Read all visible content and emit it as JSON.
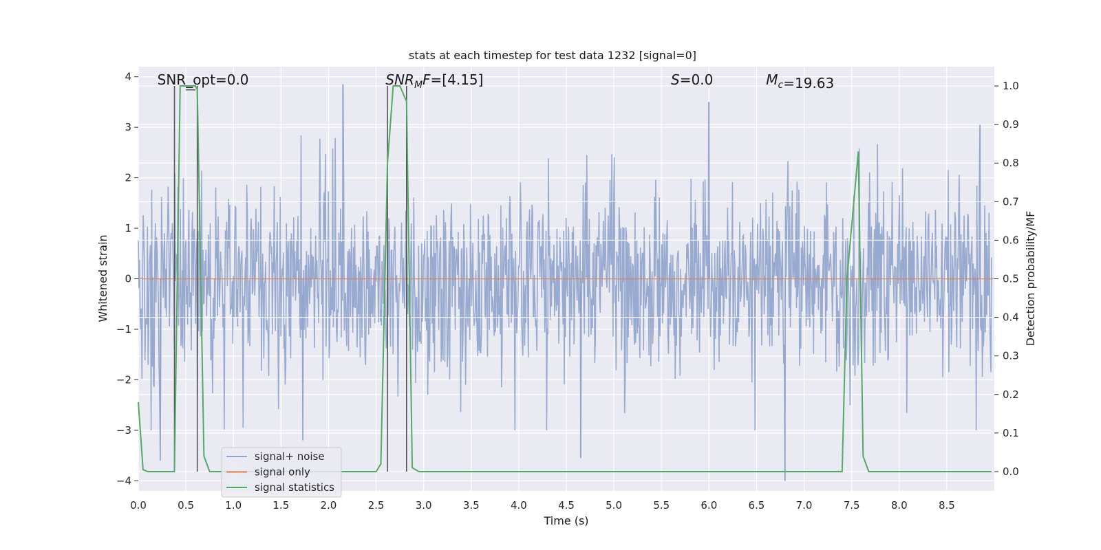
{
  "chart_data": {
    "type": "line",
    "title": "stats at each timestep for test data 1232 [signal=0]",
    "xlabel": "Time (s)",
    "ylabel": "Whitened strain",
    "y2label": "Detection probability/MF",
    "xlim": [
      0,
      9
    ],
    "ylim": [
      -4.2,
      4.2
    ],
    "y2lim": [
      -0.05,
      1.05
    ],
    "xticks": [
      "0.0",
      "0.5",
      "1.0",
      "1.5",
      "2.0",
      "2.5",
      "3.0",
      "3.5",
      "4.0",
      "4.5",
      "5.0",
      "5.5",
      "6.0",
      "6.5",
      "7.0",
      "7.5",
      "8.0",
      "8.5"
    ],
    "yticks": [
      "4",
      "3",
      "2",
      "1",
      "0",
      "−1",
      "−2",
      "−3",
      "−4"
    ],
    "y2ticks": [
      "1.0",
      "0.9",
      "0.8",
      "0.7",
      "0.6",
      "0.5",
      "0.4",
      "0.3",
      "0.2",
      "0.1",
      "0.0"
    ],
    "grid": true,
    "legend_position": "lower-left",
    "colors": {
      "noise": "#8fa3cb",
      "signal_only": "#dd8452",
      "statistics": "#55a868",
      "vlines": "#555555",
      "axes_bg": "#eaeaf2",
      "grid": "#ffffff"
    },
    "annotations": [
      {
        "id": "snr-opt",
        "text": "SNR_opt=0.0",
        "x": 0.2
      },
      {
        "id": "snr-mf",
        "text": "F=[4.15]",
        "prefix": "SNR",
        "sub": "M",
        "x": 2.6
      },
      {
        "id": "s",
        "text": "=0.0",
        "prefix": "S",
        "x": 5.6
      },
      {
        "id": "mc",
        "text": "=19.63",
        "prefix": "M",
        "sub": "c",
        "x": 6.6
      }
    ],
    "vertical_lines": [
      0.38,
      0.62,
      2.62,
      2.82
    ],
    "series": [
      {
        "name": "signal+ noise",
        "description": "noisy whitened strain, roughly uniform amplitude across the whole interval",
        "spike_extremes": [
          {
            "x": 0.23,
            "y": -3.6
          },
          {
            "x": 2.15,
            "y": 3.85
          },
          {
            "x": 1.73,
            "y": -3.2
          },
          {
            "x": 4.65,
            "y": -3.55
          },
          {
            "x": 6.0,
            "y": 3.5
          },
          {
            "x": 6.8,
            "y": -4.0
          },
          {
            "x": 8.85,
            "y": 3.05
          }
        ]
      },
      {
        "name": "signal only",
        "x": [
          0.0,
          9.0
        ],
        "y": [
          0.0,
          0.0
        ]
      },
      {
        "name": "signal statistics",
        "axis": "right",
        "x": [
          0.0,
          0.05,
          0.1,
          0.38,
          0.44,
          0.6,
          0.62,
          0.69,
          0.75,
          2.5,
          2.55,
          2.62,
          2.68,
          2.75,
          2.82,
          2.88,
          2.95,
          7.4,
          7.45,
          7.57,
          7.62,
          7.68,
          8.97
        ],
        "y": [
          0.18,
          0.005,
          0.0,
          0.0,
          1.0,
          1.0,
          0.99,
          0.04,
          0.0,
          0.0,
          0.02,
          0.8,
          1.0,
          1.0,
          0.96,
          0.01,
          0.0,
          0.0,
          0.5,
          0.83,
          0.04,
          0.0,
          0.0
        ]
      }
    ],
    "legend": [
      {
        "label": "signal+ noise",
        "color": "#8fa3cb"
      },
      {
        "label": "signal only",
        "color": "#dd8452"
      },
      {
        "label": "signal statistics",
        "color": "#55a868"
      }
    ]
  }
}
